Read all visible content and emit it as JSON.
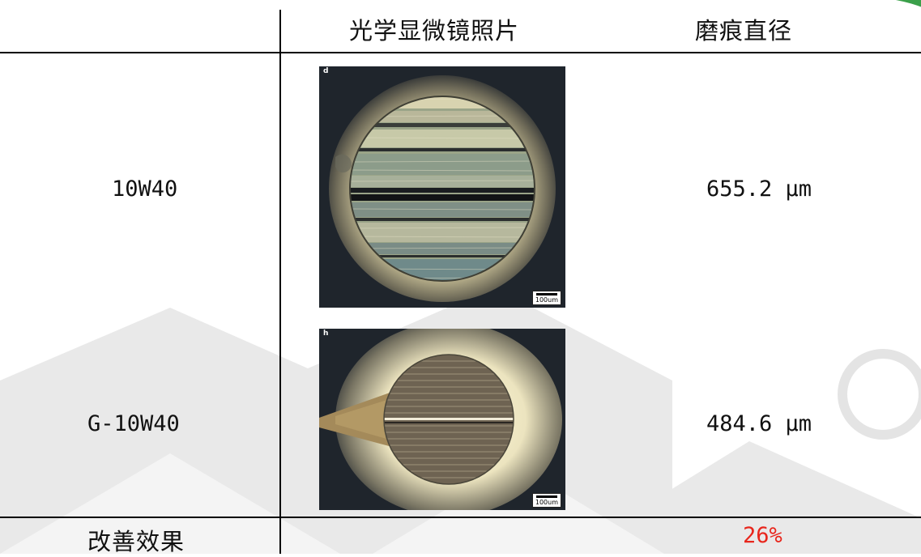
{
  "table": {
    "headers": {
      "photo": "光学显微镜照片",
      "diameter": "磨痕直径"
    },
    "rows": [
      {
        "sample": "10W40",
        "photo_label": "d",
        "scale_label": "100um",
        "diameter": "655.2 μm"
      },
      {
        "sample": "G-10W40",
        "photo_label": "h",
        "scale_label": "100um",
        "diameter": "484.6 μm"
      }
    ],
    "summary": {
      "label": "改善效果",
      "value": "26%"
    }
  },
  "colors": {
    "watermark_grey": "#e6e6e6",
    "highlight_red": "#e8261c",
    "corner_green": "#3ba04a"
  }
}
